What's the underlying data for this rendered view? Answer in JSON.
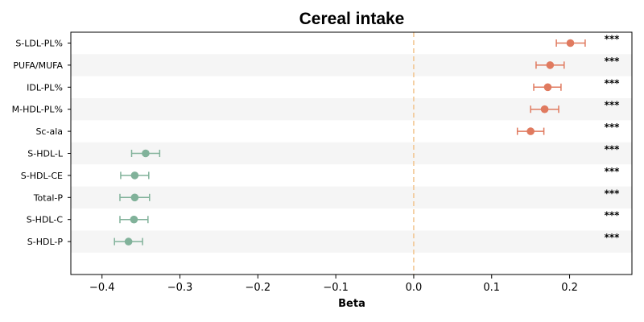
{
  "chart_data": {
    "type": "scatter",
    "title": "Cereal intake",
    "xlabel": "Beta",
    "ylabel": "",
    "xlim": [
      -0.44,
      0.28
    ],
    "xticks": [
      -0.4,
      -0.3,
      -0.2,
      -0.1,
      0.0,
      0.1,
      0.2
    ],
    "xtick_labels": [
      "−0.4",
      "−0.3",
      "−0.2",
      "−0.1",
      "0.0",
      "0.1",
      "0.2"
    ],
    "reference_line": 0.0,
    "grid": false,
    "colors": {
      "positive": "#e07a5f",
      "negative": "#81b29a",
      "reference": "#f2c48d",
      "stripe": "#f5f5f5"
    },
    "points": [
      {
        "label": "S-LDL-PL%",
        "beta": 0.201,
        "ci_low": 0.183,
        "ci_high": 0.22,
        "significance": "***"
      },
      {
        "label": "PUFA/MUFA",
        "beta": 0.175,
        "ci_low": 0.157,
        "ci_high": 0.193,
        "significance": "***"
      },
      {
        "label": "IDL-PL%",
        "beta": 0.172,
        "ci_low": 0.154,
        "ci_high": 0.189,
        "significance": "***"
      },
      {
        "label": "M-HDL-PL%",
        "beta": 0.168,
        "ci_low": 0.15,
        "ci_high": 0.186,
        "significance": "***"
      },
      {
        "label": "Sc-ala",
        "beta": 0.15,
        "ci_low": 0.133,
        "ci_high": 0.167,
        "significance": "***"
      },
      {
        "label": "S-HDL-L",
        "beta": -0.344,
        "ci_low": -0.362,
        "ci_high": -0.326,
        "significance": "***"
      },
      {
        "label": "S-HDL-CE",
        "beta": -0.358,
        "ci_low": -0.376,
        "ci_high": -0.34,
        "significance": "***"
      },
      {
        "label": "Total-P",
        "beta": -0.358,
        "ci_low": -0.377,
        "ci_high": -0.339,
        "significance": "***"
      },
      {
        "label": "S-HDL-C",
        "beta": -0.359,
        "ci_low": -0.377,
        "ci_high": -0.341,
        "significance": "***"
      },
      {
        "label": "S-HDL-P",
        "beta": -0.366,
        "ci_low": -0.384,
        "ci_high": -0.348,
        "significance": "***"
      }
    ]
  }
}
